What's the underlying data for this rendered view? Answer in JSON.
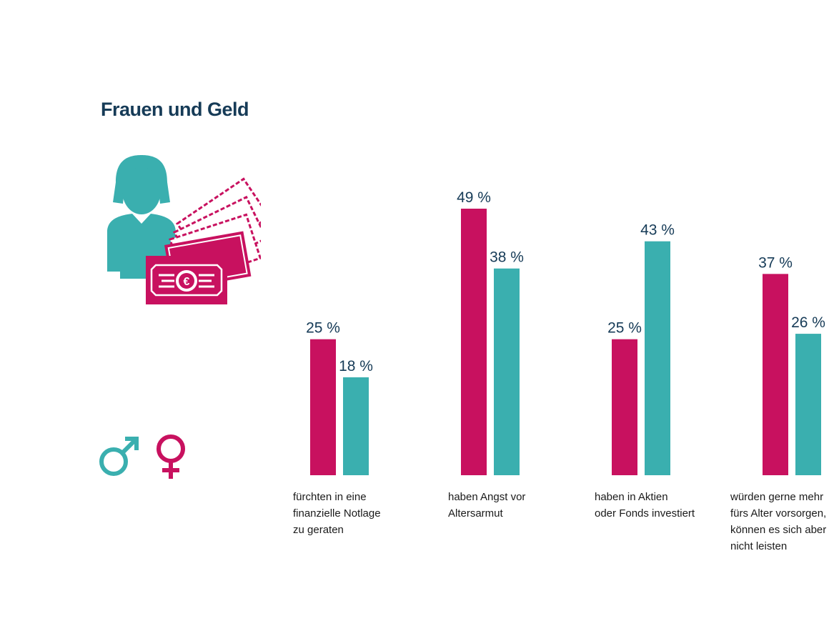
{
  "title": "Frauen und Geld",
  "illustration": {
    "icon": "woman-with-euro-banknotes-icon",
    "currency_symbol": "€"
  },
  "legend": {
    "male_symbol": "♂",
    "female_symbol": "♀",
    "male_color": "#3aafaf",
    "female_color": "#c8115f"
  },
  "colors": {
    "women": "#c8115f",
    "men": "#3aafaf",
    "text": "#163b57"
  },
  "chart_data": {
    "type": "bar",
    "title": "Frauen und Geld",
    "xlabel": "",
    "ylabel": "",
    "ylim": [
      0,
      49
    ],
    "grid": false,
    "categories": [
      [
        "fürchten in eine",
        "finanzielle Notlage",
        "zu geraten"
      ],
      [
        "haben Angst vor",
        "Altersarmut"
      ],
      [
        "haben in Aktien",
        "oder Fonds investiert"
      ],
      [
        "würden gerne mehr",
        "fürs Alter vorsorgen,",
        "können es sich aber",
        "nicht leisten"
      ]
    ],
    "series": [
      {
        "name": "Frauen",
        "color": "#c8115f",
        "values": [
          25,
          49,
          25,
          37
        ],
        "labels": [
          "25 %",
          "49 %",
          "25 %",
          "37 %"
        ]
      },
      {
        "name": "Männer",
        "color": "#3aafaf",
        "values": [
          18,
          38,
          43,
          26
        ],
        "labels": [
          "18 %",
          "38 %",
          "43 %",
          "26 %"
        ]
      }
    ]
  }
}
